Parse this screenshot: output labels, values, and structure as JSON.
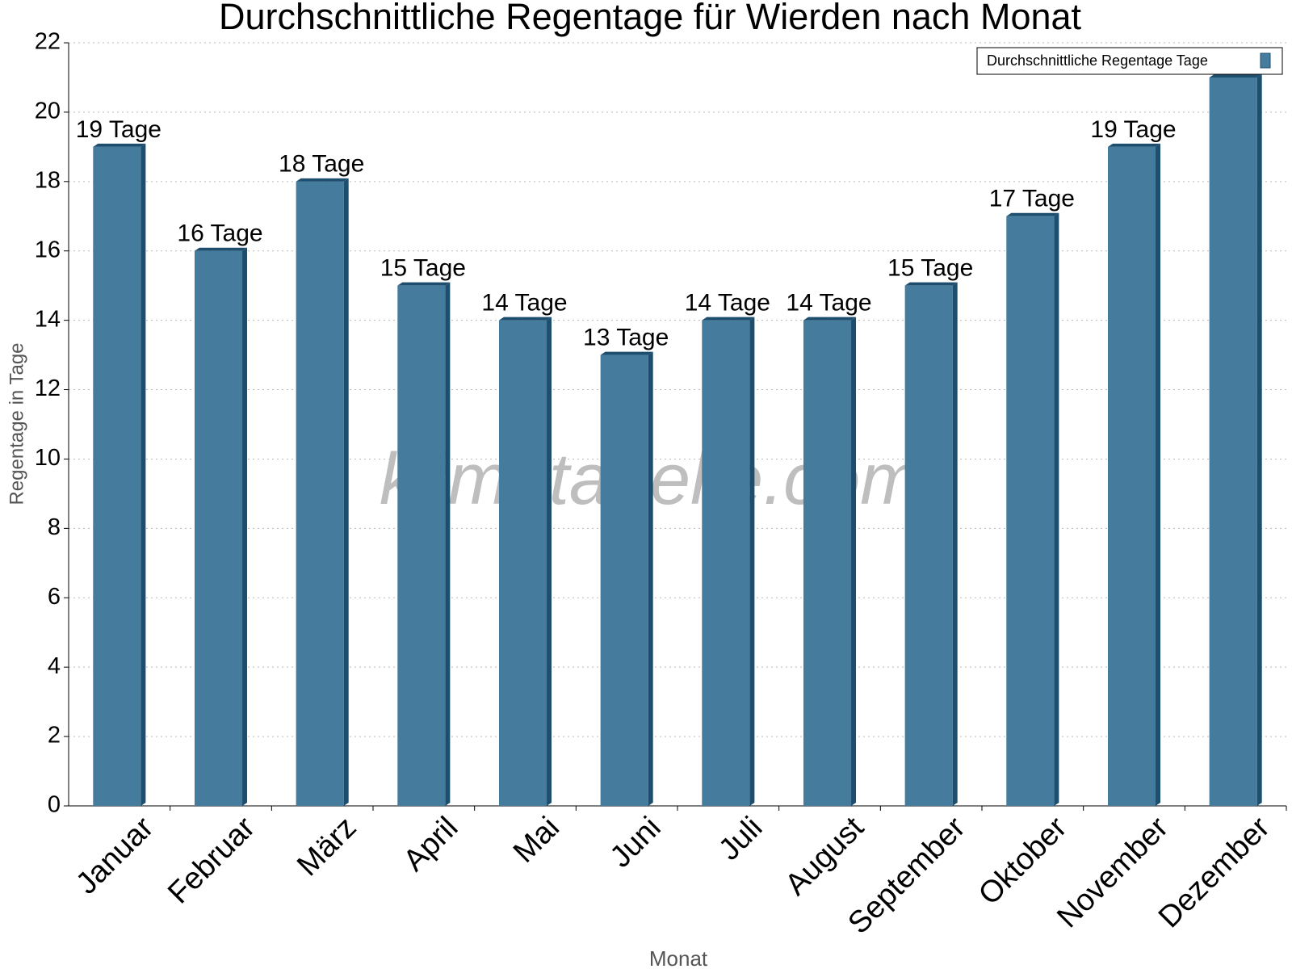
{
  "chart_data": {
    "type": "bar",
    "title": "Durchschnittliche Regentage für Wierden nach Monat",
    "x_label": "Monat",
    "y_label": "Regentage in Tage",
    "watermark": "klimatabelle.com",
    "categories": [
      "Januar",
      "Februar",
      "März",
      "April",
      "Mai",
      "Juni",
      "Juli",
      "August",
      "September",
      "Oktober",
      "November",
      "Dezember"
    ],
    "series": [
      {
        "name": "Durchschnittliche Regentage Tage",
        "color": "#457b9d",
        "values": [
          19,
          16,
          18,
          15,
          14,
          13,
          14,
          14,
          15,
          17,
          19,
          21
        ],
        "value_labels": [
          "19 Tage",
          "16 Tage",
          "18 Tage",
          "15 Tage",
          "14 Tage",
          "13 Tage",
          "14 Tage",
          "14 Tage",
          "15 Tage",
          "17 Tage",
          "19 Tage",
          null
        ]
      }
    ],
    "ylim": [
      0,
      22
    ],
    "yticks": [
      0,
      2,
      4,
      6,
      8,
      10,
      12,
      14,
      16,
      18,
      20,
      22
    ],
    "grid": true,
    "legend": "top-right"
  }
}
